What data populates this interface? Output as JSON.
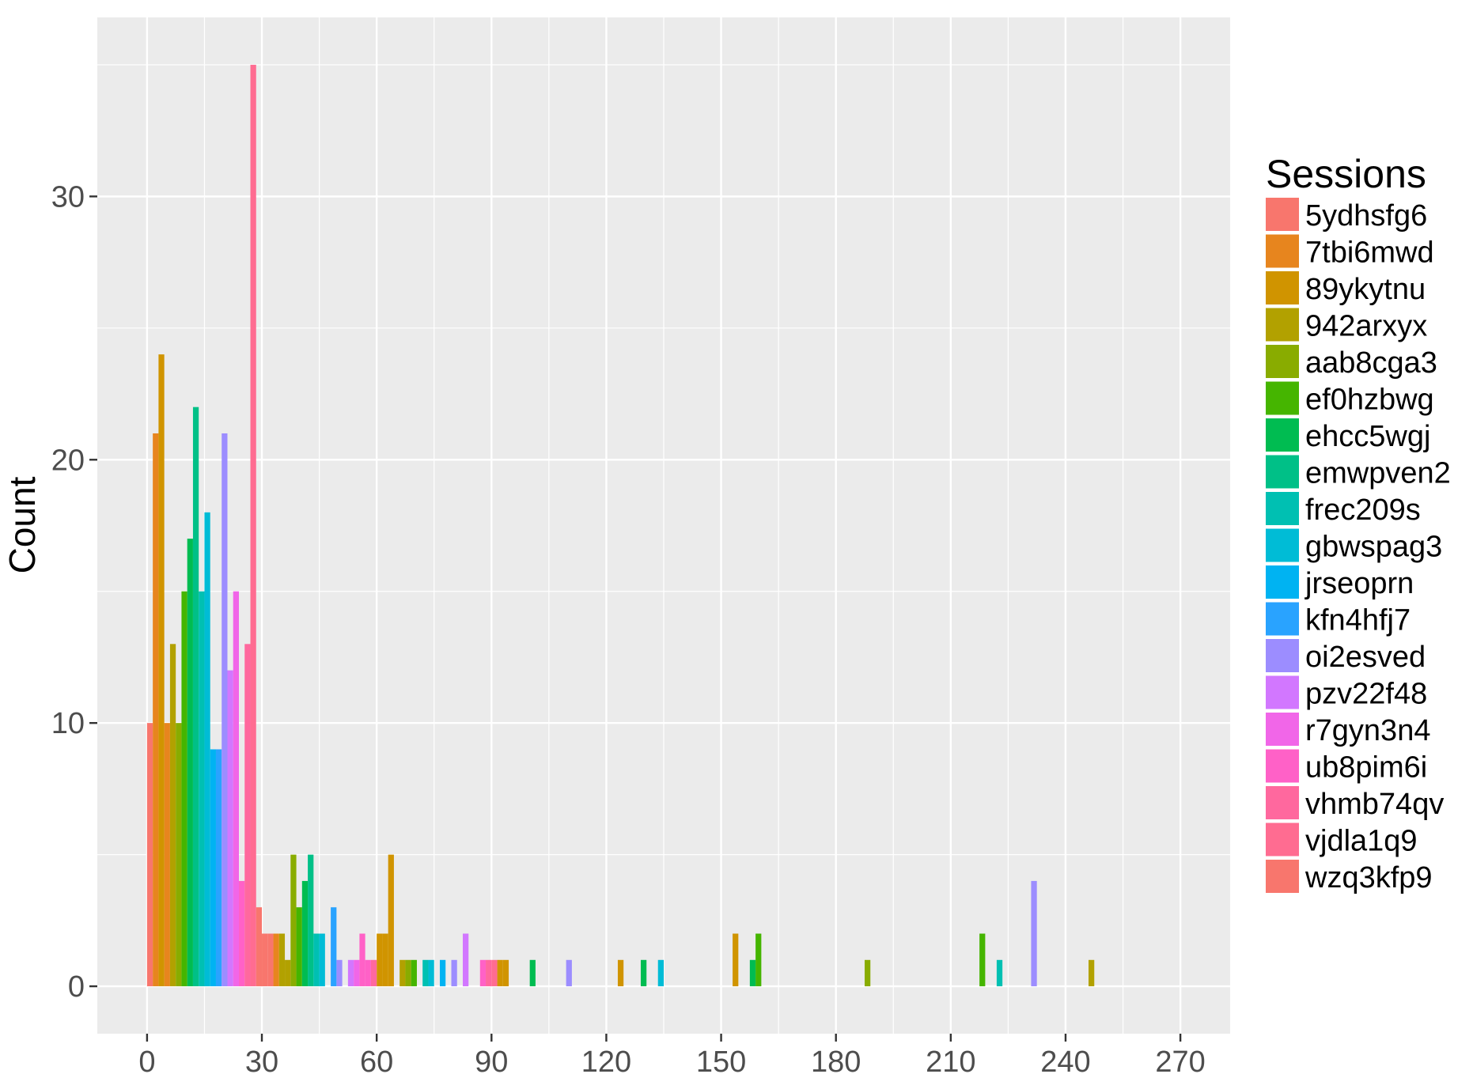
{
  "chart_data": {
    "type": "bar",
    "title": "",
    "xlabel": "?",
    "ylabel": "Count",
    "xlim": [
      -13,
      283
    ],
    "ylim": [
      -1.8,
      36.8
    ],
    "bin_width": 1.5,
    "x_ticks": [
      0,
      30,
      60,
      90,
      120,
      150,
      180,
      210,
      240,
      270
    ],
    "y_ticks": [
      0,
      10,
      20,
      30
    ],
    "grid": true,
    "legend_position": "right",
    "legend_title": "Sessions",
    "series": [
      {
        "name": "5ydhsfg6",
        "color": "#F8766D",
        "bars": [
          {
            "x": 0.75,
            "y": 10
          }
        ]
      },
      {
        "name": "7tbi6mwd",
        "color": "#E7851E",
        "bars": [
          {
            "x": 2.25,
            "y": 21
          },
          {
            "x": 5.25,
            "y": 10
          },
          {
            "x": 33.75,
            "y": 2
          }
        ]
      },
      {
        "name": "89ykytnu",
        "color": "#D09400",
        "bars": [
          {
            "x": 3.75,
            "y": 24
          },
          {
            "x": 60.75,
            "y": 2
          },
          {
            "x": 62.25,
            "y": 2
          },
          {
            "x": 63.75,
            "y": 5
          },
          {
            "x": 92.25,
            "y": 1
          },
          {
            "x": 93.75,
            "y": 1
          },
          {
            "x": 123.75,
            "y": 1
          },
          {
            "x": 153.75,
            "y": 2
          }
        ]
      },
      {
        "name": "942arxyx",
        "color": "#B2A100",
        "bars": [
          {
            "x": 6.75,
            "y": 13
          },
          {
            "x": 35.25,
            "y": 2
          },
          {
            "x": 36.75,
            "y": 1
          },
          {
            "x": 66.75,
            "y": 1
          },
          {
            "x": 246.75,
            "y": 1
          }
        ]
      },
      {
        "name": "aab8cga3",
        "color": "#89AC00",
        "bars": [
          {
            "x": 8.25,
            "y": 10
          },
          {
            "x": 38.25,
            "y": 5
          },
          {
            "x": 68.25,
            "y": 1
          },
          {
            "x": 188.25,
            "y": 1
          }
        ]
      },
      {
        "name": "ef0hzbwg",
        "color": "#45B500",
        "bars": [
          {
            "x": 9.75,
            "y": 15
          },
          {
            "x": 39.75,
            "y": 3
          },
          {
            "x": 69.75,
            "y": 1
          },
          {
            "x": 159.75,
            "y": 2
          },
          {
            "x": 218.25,
            "y": 2
          }
        ]
      },
      {
        "name": "ehcc5wgj",
        "color": "#00BC51",
        "bars": [
          {
            "x": 11.25,
            "y": 17
          },
          {
            "x": 41.25,
            "y": 4
          },
          {
            "x": 100.75,
            "y": 1
          },
          {
            "x": 129.75,
            "y": 1
          },
          {
            "x": 158.25,
            "y": 1
          }
        ]
      },
      {
        "name": "emwpven2",
        "color": "#00C087",
        "bars": [
          {
            "x": 12.75,
            "y": 22
          },
          {
            "x": 42.75,
            "y": 5
          }
        ]
      },
      {
        "name": "frec209s",
        "color": "#00C0B2",
        "bars": [
          {
            "x": 14.25,
            "y": 15
          },
          {
            "x": 44.25,
            "y": 2
          },
          {
            "x": 72.75,
            "y": 1
          },
          {
            "x": 222.75,
            "y": 1
          }
        ]
      },
      {
        "name": "gbwspag3",
        "color": "#00BCD6",
        "bars": [
          {
            "x": 15.75,
            "y": 18
          },
          {
            "x": 45.75,
            "y": 2
          },
          {
            "x": 74.25,
            "y": 1
          },
          {
            "x": 134.25,
            "y": 1
          }
        ]
      },
      {
        "name": "jrseoprn",
        "color": "#00B3F2",
        "bars": [
          {
            "x": 17.25,
            "y": 9
          },
          {
            "x": 77.25,
            "y": 1
          }
        ]
      },
      {
        "name": "kfn4hfj7",
        "color": "#29A3FF",
        "bars": [
          {
            "x": 18.75,
            "y": 9
          },
          {
            "x": 48.75,
            "y": 3
          }
        ]
      },
      {
        "name": "oi2esved",
        "color": "#9C8DFF",
        "bars": [
          {
            "x": 20.25,
            "y": 21
          },
          {
            "x": 50.25,
            "y": 1
          },
          {
            "x": 80.25,
            "y": 1
          },
          {
            "x": 110.25,
            "y": 1
          },
          {
            "x": 231.75,
            "y": 4
          }
        ]
      },
      {
        "name": "pzv22f48",
        "color": "#D277FF",
        "bars": [
          {
            "x": 21.75,
            "y": 12
          },
          {
            "x": 53.25,
            "y": 1
          },
          {
            "x": 83.25,
            "y": 2
          }
        ]
      },
      {
        "name": "r7gyn3n4",
        "color": "#F166E8",
        "bars": [
          {
            "x": 23.25,
            "y": 15
          },
          {
            "x": 54.75,
            "y": 1
          }
        ]
      },
      {
        "name": "ub8pim6i",
        "color": "#FF61C7",
        "bars": [
          {
            "x": 24.75,
            "y": 4
          },
          {
            "x": 56.25,
            "y": 2
          },
          {
            "x": 57.75,
            "y": 1
          },
          {
            "x": 87.75,
            "y": 1
          }
        ]
      },
      {
        "name": "vhmb74qv",
        "color": "#FF689E",
        "bars": [
          {
            "x": 26.25,
            "y": 13
          },
          {
            "x": 59.25,
            "y": 1
          },
          {
            "x": 89.25,
            "y": 1
          }
        ]
      },
      {
        "name": "vjdla1q9",
        "color": "#FF6C91",
        "bars": [
          {
            "x": 27.75,
            "y": 35
          },
          {
            "x": 90.75,
            "y": 1
          }
        ]
      },
      {
        "name": "wzq3kfp9",
        "color": "#F8766D",
        "bars": [
          {
            "x": 29.25,
            "y": 3
          },
          {
            "x": 30.75,
            "y": 2
          },
          {
            "x": 32.25,
            "y": 2
          }
        ]
      }
    ]
  }
}
